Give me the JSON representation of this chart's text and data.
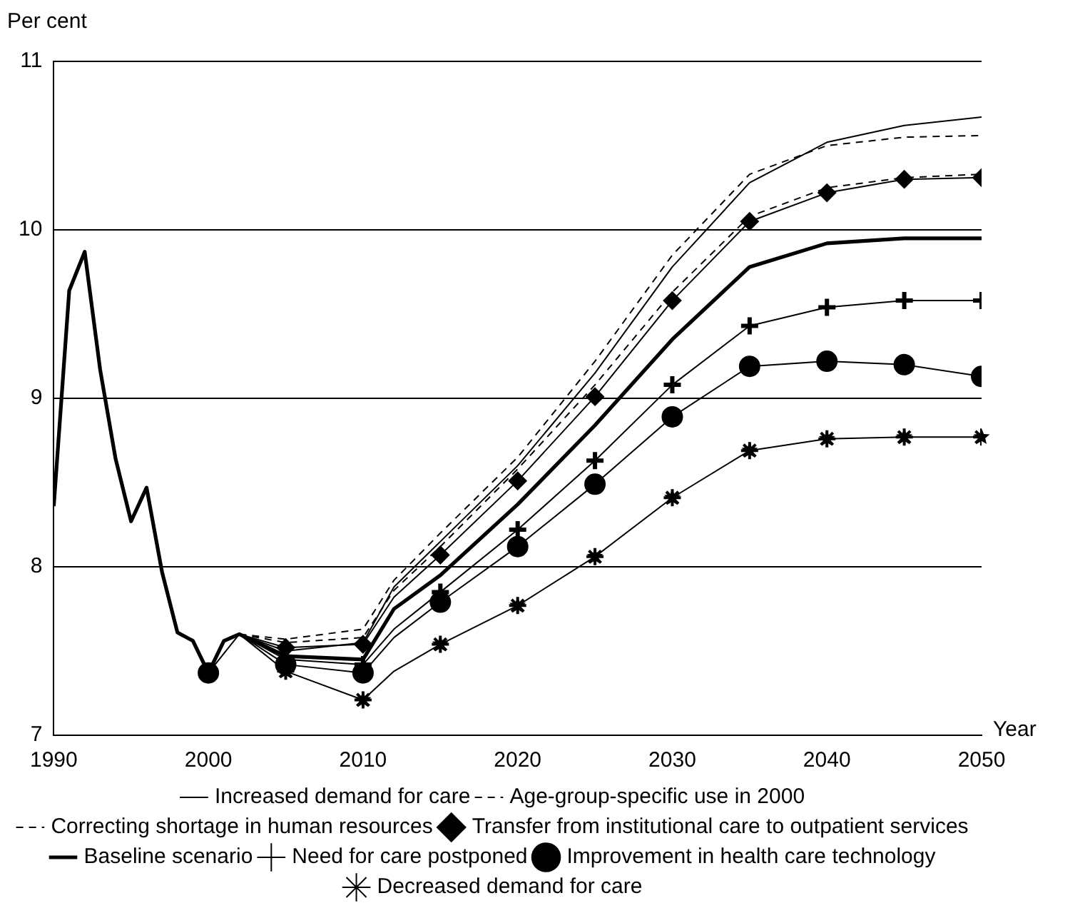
{
  "chart_data": {
    "type": "line",
    "xlabel": "Year",
    "ylabel": "Per cent",
    "xlim": [
      1990,
      2050
    ],
    "xticks": [
      1990,
      2000,
      2010,
      2020,
      2030,
      2040,
      2050
    ],
    "ylim": [
      7,
      11
    ],
    "yticks": [
      7,
      8,
      9,
      10,
      11
    ],
    "grid": "y",
    "legend": "bottom",
    "series": [
      {
        "name": "Increased demand for care",
        "color": "#000000",
        "marker": "none",
        "line_style": "solid",
        "x": [
          2002,
          2005,
          2010,
          2012,
          2015,
          2020,
          2025,
          2030,
          2035,
          2040,
          2045,
          2050
        ],
        "values": [
          7.6,
          7.5,
          7.55,
          7.88,
          8.15,
          8.6,
          9.15,
          9.78,
          10.28,
          10.52,
          10.62,
          10.67
        ]
      },
      {
        "name": "Age-group-specific use in 2000",
        "color": "#000000",
        "marker": "none",
        "line_style": "dashed",
        "x": [
          2002,
          2005,
          2010,
          2012,
          2015,
          2020,
          2025,
          2030,
          2035,
          2040,
          2045,
          2050
        ],
        "values": [
          7.6,
          7.57,
          7.63,
          7.92,
          8.2,
          8.65,
          9.22,
          9.85,
          10.33,
          10.5,
          10.55,
          10.56
        ]
      },
      {
        "name": "Correcting shortage in human resources",
        "color": "#000000",
        "marker": "none",
        "line_style": "dashed",
        "x": [
          2002,
          2005,
          2010,
          2012,
          2015,
          2020,
          2025,
          2030,
          2035,
          2040,
          2045,
          2050
        ],
        "values": [
          7.6,
          7.55,
          7.58,
          7.86,
          8.12,
          8.58,
          9.08,
          9.63,
          10.08,
          10.25,
          10.31,
          10.33
        ]
      },
      {
        "name": "Transfer from institutional care to outpatient services",
        "color": "#000000",
        "marker": "diamond",
        "line_style": "solid",
        "x": [
          2002,
          2005,
          2010,
          2012,
          2015,
          2020,
          2025,
          2030,
          2035,
          2040,
          2045,
          2050
        ],
        "values": [
          7.6,
          7.52,
          7.54,
          7.82,
          8.07,
          8.51,
          9.01,
          9.58,
          10.05,
          10.22,
          10.3,
          10.31
        ]
      },
      {
        "name": "Baseline scenario",
        "color": "#000000",
        "marker": "none",
        "line_style": "solid",
        "x": [
          1990,
          1991,
          1992,
          1993,
          1994,
          1995,
          1996,
          1997,
          1998,
          1999,
          2000,
          2001,
          2002,
          2005,
          2010,
          2012,
          2015,
          2020,
          2025,
          2030,
          2035,
          2040,
          2045,
          2050
        ],
        "values": [
          8.36,
          9.64,
          9.87,
          9.17,
          8.64,
          8.27,
          8.47,
          7.97,
          7.61,
          7.56,
          7.37,
          7.56,
          7.6,
          7.47,
          7.45,
          7.75,
          7.95,
          8.37,
          8.84,
          9.35,
          9.78,
          9.92,
          9.95,
          9.95
        ]
      },
      {
        "name": "Need for care postponed",
        "color": "#000000",
        "marker": "cross",
        "line_style": "solid",
        "x": [
          2002,
          2005,
          2010,
          2012,
          2015,
          2020,
          2025,
          2030,
          2035,
          2040,
          2045,
          2050
        ],
        "values": [
          7.6,
          7.45,
          7.42,
          7.63,
          7.85,
          8.22,
          8.63,
          9.08,
          9.43,
          9.54,
          9.58,
          9.58
        ]
      },
      {
        "name": "Improvement in health care technology",
        "color": "#000000",
        "marker": "circle",
        "line_style": "solid",
        "x": [
          2000,
          2002,
          2005,
          2010,
          2012,
          2015,
          2020,
          2025,
          2030,
          2035,
          2040,
          2045,
          2050
        ],
        "values": [
          7.37,
          7.6,
          7.42,
          7.37,
          7.58,
          7.79,
          8.12,
          8.49,
          8.89,
          9.19,
          9.22,
          9.2,
          9.13
        ]
      },
      {
        "name": "Decreased demand for care",
        "color": "#000000",
        "marker": "star",
        "line_style": "solid",
        "x": [
          2002,
          2005,
          2010,
          2012,
          2015,
          2020,
          2025,
          2030,
          2035,
          2040,
          2045,
          2050
        ],
        "values": [
          7.6,
          7.38,
          7.21,
          7.38,
          7.54,
          7.77,
          8.06,
          8.41,
          8.69,
          8.76,
          8.77,
          8.77
        ]
      }
    ]
  }
}
